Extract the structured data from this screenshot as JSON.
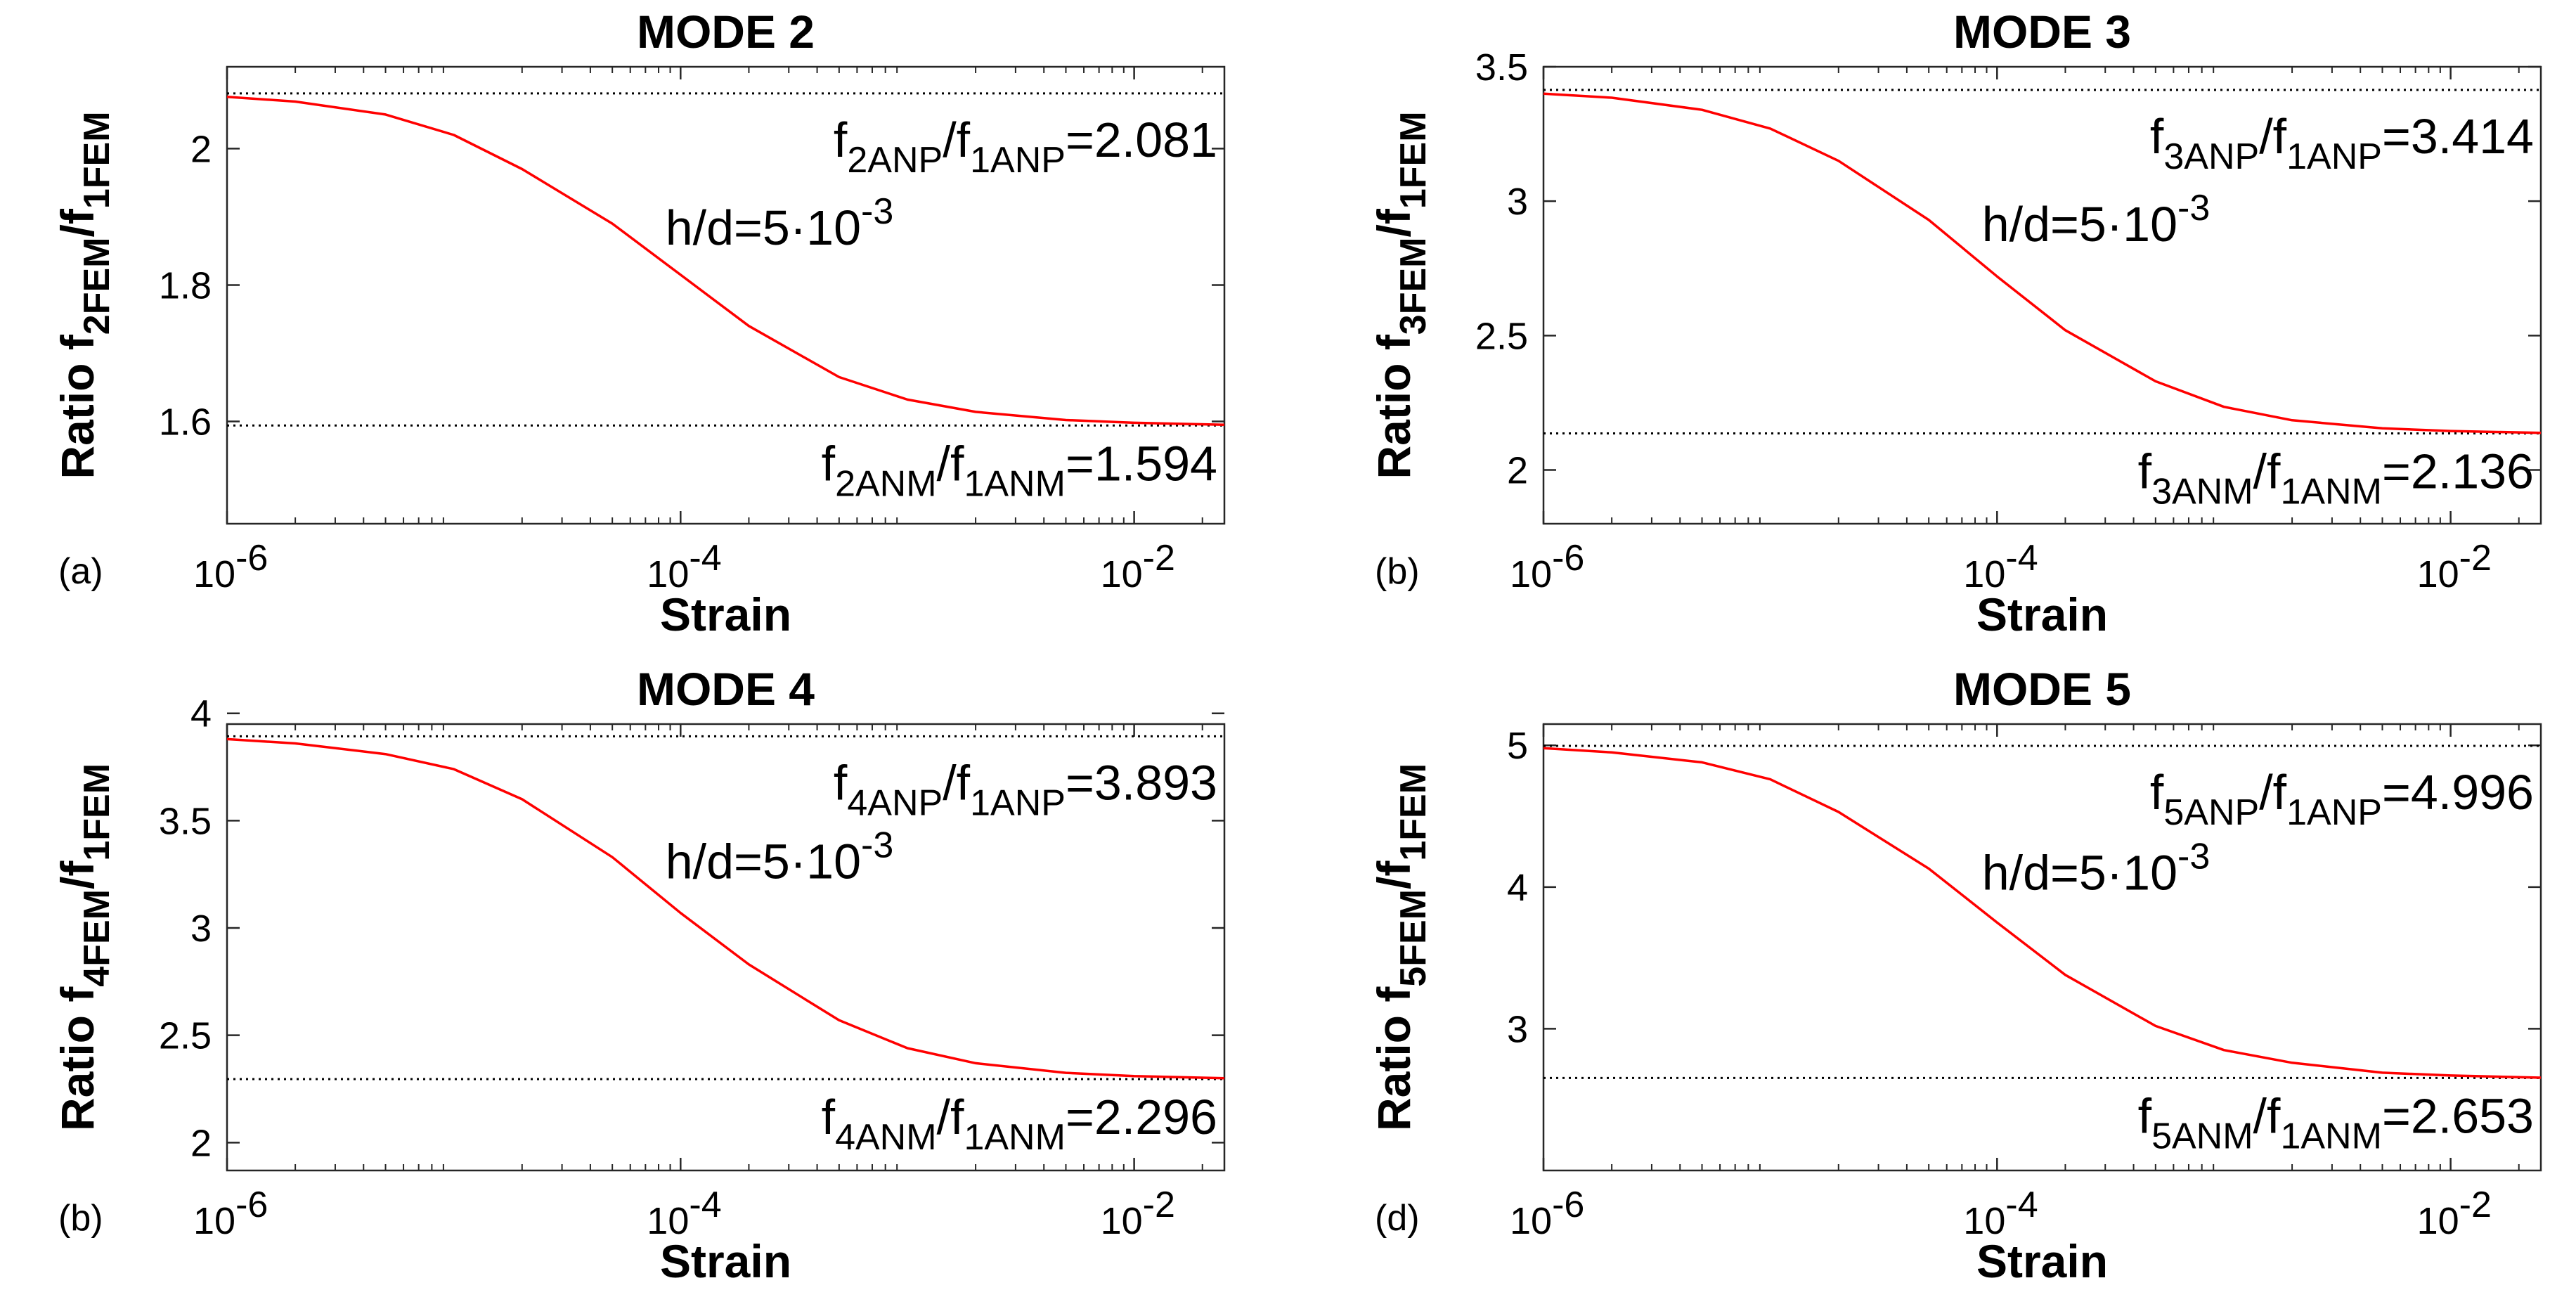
{
  "chart_data": [
    {
      "type": "line",
      "title": "MODE 2",
      "panel_label": "(a)",
      "xlabel": "Strain",
      "ylabel": {
        "main": "Ratio f",
        "sub1": "2FEM",
        "mid": "/f",
        "sub2": "1FEM"
      },
      "xscale": "log",
      "xlim": [
        1e-06,
        0.025
      ],
      "ylim": [
        1.45,
        2.12
      ],
      "xticks": [
        {
          "value": 1e-06,
          "base": "10",
          "exp": "-6"
        },
        {
          "value": 0.0001,
          "base": "10",
          "exp": "-4"
        },
        {
          "value": 0.01,
          "base": "10",
          "exp": "-2"
        }
      ],
      "yticks": [
        {
          "value": 1.6,
          "label": "1.6"
        },
        {
          "value": 1.8,
          "label": "1.8"
        },
        {
          "value": 2.0,
          "label": "2"
        }
      ],
      "series": [
        {
          "name": "h/d=5·10^-3",
          "color": "#ff0000",
          "x": [
            1e-06,
            2e-06,
            5e-06,
            1e-05,
            2e-05,
            5e-05,
            0.0001,
            0.0002,
            0.0005,
            0.001,
            0.002,
            0.005,
            0.01,
            0.025
          ],
          "y": [
            2.076,
            2.069,
            2.05,
            2.02,
            1.97,
            1.89,
            1.815,
            1.74,
            1.665,
            1.632,
            1.614,
            1.602,
            1.598,
            1.595
          ]
        }
      ],
      "reference_lines": [
        {
          "value": 2.081,
          "text": {
            "f": "f",
            "sub1": "2ANP",
            "slash": "/f",
            "sub2": "1ANP",
            "value": "=2.081"
          }
        },
        {
          "value": 1.594,
          "text": {
            "f": "f",
            "sub1": "2ANM",
            "slash": "/f",
            "sub2": "1ANM",
            "value": "=1.594"
          }
        }
      ],
      "annotation": {
        "text": "h/d=5·10",
        "exp": "-3"
      }
    },
    {
      "type": "line",
      "title": "MODE 3",
      "panel_label": "(b)",
      "xlabel": "Strain",
      "ylabel": {
        "main": "Ratio f",
        "sub1": "3FEM",
        "mid": "/f",
        "sub2": "1FEM"
      },
      "xscale": "log",
      "xlim": [
        1e-06,
        0.025
      ],
      "ylim": [
        1.8,
        3.5
      ],
      "xticks": [
        {
          "value": 1e-06,
          "base": "10",
          "exp": "-6"
        },
        {
          "value": 0.0001,
          "base": "10",
          "exp": "-4"
        },
        {
          "value": 0.01,
          "base": "10",
          "exp": "-2"
        }
      ],
      "yticks": [
        {
          "value": 2.0,
          "label": "2"
        },
        {
          "value": 2.5,
          "label": "2.5"
        },
        {
          "value": 3.0,
          "label": "3"
        },
        {
          "value": 3.5,
          "label": "3.5"
        }
      ],
      "series": [
        {
          "name": "h/d=5·10^-3",
          "color": "#ff0000",
          "x": [
            1e-06,
            2e-06,
            5e-06,
            1e-05,
            2e-05,
            5e-05,
            0.0001,
            0.0002,
            0.0005,
            0.001,
            0.002,
            0.005,
            0.01,
            0.025
          ],
          "y": [
            3.4,
            3.385,
            3.34,
            3.27,
            3.15,
            2.93,
            2.72,
            2.52,
            2.33,
            2.235,
            2.185,
            2.155,
            2.145,
            2.138
          ]
        }
      ],
      "reference_lines": [
        {
          "value": 3.414,
          "text": {
            "f": "f",
            "sub1": "3ANP",
            "slash": "/f",
            "sub2": "1ANP",
            "value": "=3.414"
          }
        },
        {
          "value": 2.136,
          "text": {
            "f": "f",
            "sub1": "3ANM",
            "slash": "/f",
            "sub2": "1ANM",
            "value": "=2.136"
          }
        }
      ],
      "annotation": {
        "text": "h/d=5·10",
        "exp": "-3"
      }
    },
    {
      "type": "line",
      "title": "MODE 4",
      "panel_label": "(b)",
      "xlabel": "Strain",
      "ylabel": {
        "main": "Ratio f",
        "sub1": "4FEM",
        "mid": "/f",
        "sub2": "1FEM"
      },
      "xscale": "log",
      "xlim": [
        1e-06,
        0.025
      ],
      "ylim": [
        1.87,
        3.95
      ],
      "xticks": [
        {
          "value": 1e-06,
          "base": "10",
          "exp": "-6"
        },
        {
          "value": 0.0001,
          "base": "10",
          "exp": "-4"
        },
        {
          "value": 0.01,
          "base": "10",
          "exp": "-2"
        }
      ],
      "yticks": [
        {
          "value": 2.0,
          "label": "2"
        },
        {
          "value": 2.5,
          "label": "2.5"
        },
        {
          "value": 3.0,
          "label": "3"
        },
        {
          "value": 3.5,
          "label": "3.5"
        },
        {
          "value": 4.0,
          "label": "4"
        }
      ],
      "series": [
        {
          "name": "h/d=5·10^-3",
          "color": "#ff0000",
          "x": [
            1e-06,
            2e-06,
            5e-06,
            1e-05,
            2e-05,
            5e-05,
            0.0001,
            0.0002,
            0.0005,
            0.001,
            0.002,
            0.005,
            0.01,
            0.025
          ],
          "y": [
            3.88,
            3.86,
            3.81,
            3.74,
            3.6,
            3.33,
            3.07,
            2.83,
            2.57,
            2.44,
            2.37,
            2.325,
            2.31,
            2.3
          ]
        }
      ],
      "reference_lines": [
        {
          "value": 3.893,
          "text": {
            "f": "f",
            "sub1": "4ANP",
            "slash": "/f",
            "sub2": "1ANP",
            "value": "=3.893"
          }
        },
        {
          "value": 2.296,
          "text": {
            "f": "f",
            "sub1": "4ANM",
            "slash": "/f",
            "sub2": "1ANM",
            "value": "=2.296"
          }
        }
      ],
      "annotation": {
        "text": "h/d=5·10",
        "exp": "-3"
      }
    },
    {
      "type": "line",
      "title": "MODE 5",
      "panel_label": "(d)",
      "xlabel": "Strain",
      "ylabel": {
        "main": "Ratio f",
        "sub1": "5FEM",
        "mid": "/f",
        "sub2": "1FEM"
      },
      "xscale": "log",
      "xlim": [
        1e-06,
        0.025
      ],
      "ylim": [
        2.0,
        5.15
      ],
      "xticks": [
        {
          "value": 1e-06,
          "base": "10",
          "exp": "-6"
        },
        {
          "value": 0.0001,
          "base": "10",
          "exp": "-4"
        },
        {
          "value": 0.01,
          "base": "10",
          "exp": "-2"
        }
      ],
      "yticks": [
        {
          "value": 3.0,
          "label": "3"
        },
        {
          "value": 4.0,
          "label": "4"
        },
        {
          "value": 5.0,
          "label": "5"
        }
      ],
      "series": [
        {
          "name": "h/d=5·10^-3",
          "color": "#ff0000",
          "x": [
            1e-06,
            2e-06,
            5e-06,
            1e-05,
            2e-05,
            5e-05,
            0.0001,
            0.0002,
            0.0005,
            0.001,
            0.002,
            0.005,
            0.01,
            0.025
          ],
          "y": [
            4.98,
            4.95,
            4.88,
            4.76,
            4.53,
            4.13,
            3.75,
            3.38,
            3.02,
            2.85,
            2.76,
            2.69,
            2.67,
            2.655
          ]
        }
      ],
      "reference_lines": [
        {
          "value": 4.996,
          "text": {
            "f": "f",
            "sub1": "5ANP",
            "slash": "/f",
            "sub2": "1ANP",
            "value": "=4.996"
          }
        },
        {
          "value": 2.653,
          "text": {
            "f": "f",
            "sub1": "5ANM",
            "slash": "/f",
            "sub2": "1ANM",
            "value": "=2.653"
          }
        }
      ],
      "annotation": {
        "text": "h/d=5·10",
        "exp": "-3"
      }
    }
  ]
}
